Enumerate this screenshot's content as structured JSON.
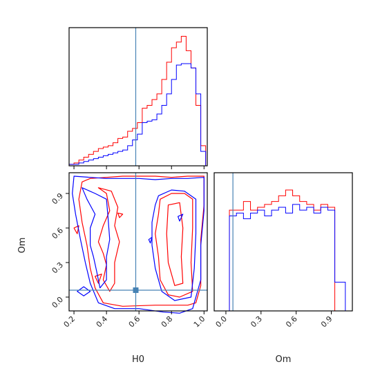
{
  "chart_data": {
    "type": "corner",
    "parameters": [
      "H0",
      "Om"
    ],
    "truth": {
      "H0": 0.58,
      "Om": 0.06
    },
    "truth_color": "#4682b4",
    "series": [
      {
        "color": "#ff0000"
      },
      {
        "color": "#0000ff"
      }
    ],
    "panels": {
      "h0_hist": {
        "xlim": [
          0.17,
          1.02
        ],
        "ylim": [
          0,
          48
        ],
        "bin_edges": [
          0.17,
          0.2,
          0.23,
          0.26,
          0.29,
          0.32,
          0.35,
          0.38,
          0.41,
          0.44,
          0.47,
          0.5,
          0.53,
          0.56,
          0.59,
          0.62,
          0.65,
          0.68,
          0.71,
          0.74,
          0.77,
          0.8,
          0.83,
          0.86,
          0.89,
          0.92,
          0.95,
          0.98,
          1.01
        ],
        "counts": [
          [
            0.5,
            1.0,
            2.0,
            3.0,
            4.0,
            5.0,
            6.0,
            6.5,
            7.0,
            8.0,
            9.5,
            10.0,
            12.0,
            13.0,
            15.0,
            20.0,
            21.0,
            23.0,
            25.0,
            30.0,
            36.0,
            41.0,
            43.0,
            45.0,
            40.0,
            34.0,
            21.0,
            7.0
          ],
          [
            0.5,
            0.5,
            1.0,
            1.5,
            2.0,
            2.5,
            3.0,
            3.5,
            4.0,
            4.5,
            5.0,
            5.5,
            7.0,
            9.0,
            11.0,
            15.0,
            15.5,
            16.0,
            18.0,
            21.0,
            25.0,
            30.0,
            35.0,
            35.5,
            35.5,
            34.0,
            25.0,
            5.0
          ]
        ],
        "xticks": [
          0.2,
          0.4,
          0.6,
          0.8,
          1.0
        ]
      },
      "om_hist": {
        "xlim": [
          -0.1,
          1.08
        ],
        "ylim": [
          0,
          48
        ],
        "bin_edges": [
          -0.03,
          0.0,
          0.03,
          0.06,
          0.09,
          0.12,
          0.15,
          0.18,
          0.21,
          0.24,
          0.27,
          0.3,
          0.33,
          0.36,
          0.39,
          0.42,
          0.45,
          0.48,
          0.51,
          0.54,
          0.57,
          0.6,
          0.63,
          0.66,
          0.69,
          0.72,
          0.75,
          0.78,
          0.81,
          0.84,
          0.87,
          0.9,
          0.93,
          0.96,
          0.99,
          1.02
        ],
        "counts": [
          [
            0.0,
            0.0,
            35.0,
            35.0,
            35.0,
            35.0,
            38.0,
            38.0,
            35.0,
            35.0,
            36.0,
            36.0,
            37.0,
            37.0,
            38.0,
            38.0,
            40.0,
            40.0,
            42.0,
            42.0,
            40.0,
            40.0,
            38.0,
            38.0,
            37.0,
            37.0,
            35.0,
            35.0,
            37.0,
            37.0,
            36.0,
            36.0,
            0.0,
            0.0,
            0.0
          ],
          [
            0.0,
            0.0,
            33.0,
            33.0,
            34.0,
            34.0,
            32.0,
            32.0,
            34.0,
            34.0,
            35.0,
            35.0,
            33.0,
            33.0,
            35.0,
            35.0,
            36.0,
            36.0,
            34.0,
            34.0,
            37.0,
            37.0,
            35.0,
            35.0,
            36.0,
            36.0,
            34.0,
            34.0,
            36.0,
            36.0,
            35.0,
            35.0,
            10.0,
            10.0,
            10.0
          ]
        ],
        "xticks": [
          0.0,
          0.3,
          0.6,
          0.9
        ],
        "xlabel": "Om"
      },
      "joint": {
        "xlim": [
          0.17,
          1.02
        ],
        "ylim": [
          -0.12,
          1.08
        ],
        "xticks": [
          0.2,
          0.4,
          0.6,
          0.8,
          1.0
        ],
        "yticks": [
          0.0,
          0.3,
          0.6,
          0.9
        ],
        "xlabel": "H0",
        "ylabel": "Om",
        "contours": [
          {
            "series": 0,
            "points": [
              [
                0.25,
                1.0
              ],
              [
                0.3,
                1.03
              ],
              [
                0.4,
                1.04
              ],
              [
                0.5,
                1.05
              ],
              [
                0.6,
                1.05
              ],
              [
                0.7,
                1.05
              ],
              [
                0.8,
                1.04
              ],
              [
                0.9,
                1.05
              ],
              [
                1.0,
                1.05
              ],
              [
                1.0,
                0.8
              ],
              [
                0.98,
                0.5
              ],
              [
                0.98,
                0.1
              ],
              [
                0.95,
                -0.05
              ],
              [
                0.9,
                -0.07
              ],
              [
                0.7,
                -0.07
              ],
              [
                0.5,
                -0.08
              ],
              [
                0.38,
                -0.05
              ],
              [
                0.33,
                0.08
              ],
              [
                0.3,
                0.25
              ],
              [
                0.28,
                0.45
              ],
              [
                0.25,
                0.65
              ],
              [
                0.23,
                0.85
              ]
            ]
          },
          {
            "series": 0,
            "points": [
              [
                0.35,
                0.95
              ],
              [
                0.4,
                0.9
              ],
              [
                0.42,
                0.75
              ],
              [
                0.38,
                0.62
              ],
              [
                0.35,
                0.48
              ],
              [
                0.38,
                0.38
              ],
              [
                0.4,
                0.28
              ],
              [
                0.38,
                0.15
              ],
              [
                0.42,
                0.05
              ],
              [
                0.45,
                0.12
              ],
              [
                0.45,
                0.3
              ],
              [
                0.48,
                0.48
              ],
              [
                0.45,
                0.62
              ],
              [
                0.47,
                0.78
              ],
              [
                0.43,
                0.92
              ]
            ]
          },
          {
            "series": 0,
            "points": [
              [
                0.73,
                0.85
              ],
              [
                0.8,
                0.9
              ],
              [
                0.88,
                0.9
              ],
              [
                0.93,
                0.85
              ],
              [
                0.93,
                0.6
              ],
              [
                0.92,
                0.3
              ],
              [
                0.93,
                0.05
              ],
              [
                0.85,
                0.0
              ],
              [
                0.78,
                0.02
              ],
              [
                0.73,
                0.15
              ],
              [
                0.72,
                0.35
              ],
              [
                0.7,
                0.55
              ],
              [
                0.72,
                0.72
              ]
            ]
          },
          {
            "series": 0,
            "points": [
              [
                0.78,
                0.8
              ],
              [
                0.85,
                0.82
              ],
              [
                0.87,
                0.6
              ],
              [
                0.86,
                0.35
              ],
              [
                0.87,
                0.12
              ],
              [
                0.82,
                0.1
              ],
              [
                0.78,
                0.3
              ],
              [
                0.77,
                0.55
              ]
            ]
          },
          {
            "series": 0,
            "points": [
              [
                0.2,
                0.6
              ],
              [
                0.23,
                0.62
              ],
              [
                0.22,
                0.55
              ]
            ]
          },
          {
            "series": 0,
            "points": [
              [
                0.47,
                0.73
              ],
              [
                0.5,
                0.72
              ],
              [
                0.48,
                0.69
              ]
            ]
          },
          {
            "series": 0,
            "points": [
              [
                0.33,
                0.18
              ],
              [
                0.37,
                0.2
              ],
              [
                0.35,
                0.12
              ]
            ]
          },
          {
            "series": 1,
            "points": [
              [
                0.2,
                1.05
              ],
              [
                0.3,
                1.04
              ],
              [
                0.4,
                1.03
              ],
              [
                0.5,
                1.03
              ],
              [
                0.6,
                1.03
              ],
              [
                0.7,
                1.02
              ],
              [
                0.8,
                1.03
              ],
              [
                0.9,
                1.03
              ],
              [
                1.0,
                1.04
              ],
              [
                1.0,
                0.75
              ],
              [
                0.98,
                0.45
              ],
              [
                0.98,
                0.15
              ],
              [
                0.93,
                -0.1
              ],
              [
                0.85,
                -0.14
              ],
              [
                0.75,
                -0.13
              ],
              [
                0.6,
                -0.1
              ],
              [
                0.45,
                -0.1
              ],
              [
                0.35,
                -0.05
              ],
              [
                0.3,
                0.12
              ],
              [
                0.27,
                0.3
              ],
              [
                0.24,
                0.5
              ],
              [
                0.21,
                0.72
              ],
              [
                0.19,
                0.9
              ]
            ]
          },
          {
            "series": 1,
            "points": [
              [
                0.25,
                0.95
              ],
              [
                0.28,
                0.85
              ],
              [
                0.33,
                0.72
              ],
              [
                0.3,
                0.6
              ],
              [
                0.3,
                0.45
              ],
              [
                0.32,
                0.35
              ],
              [
                0.34,
                0.22
              ],
              [
                0.36,
                0.08
              ],
              [
                0.4,
                0.15
              ],
              [
                0.4,
                0.35
              ],
              [
                0.42,
                0.5
              ],
              [
                0.41,
                0.68
              ],
              [
                0.4,
                0.85
              ],
              [
                0.33,
                0.9
              ]
            ]
          },
          {
            "series": 1,
            "points": [
              [
                0.72,
                0.88
              ],
              [
                0.8,
                0.93
              ],
              [
                0.88,
                0.92
              ],
              [
                0.95,
                0.85
              ],
              [
                0.95,
                0.55
              ],
              [
                0.94,
                0.25
              ],
              [
                0.92,
                0.0
              ],
              [
                0.82,
                -0.03
              ],
              [
                0.74,
                0.05
              ],
              [
                0.7,
                0.25
              ],
              [
                0.68,
                0.45
              ],
              [
                0.68,
                0.65
              ],
              [
                0.7,
                0.8
              ]
            ]
          },
          {
            "series": 1,
            "points": [
              [
                0.66,
                0.5
              ],
              [
                0.68,
                0.52
              ],
              [
                0.67,
                0.47
              ]
            ]
          },
          {
            "series": 1,
            "points": [
              [
                0.22,
                0.05
              ],
              [
                0.26,
                0.09
              ],
              [
                0.3,
                0.05
              ],
              [
                0.26,
                0.01
              ]
            ]
          },
          {
            "series": 1,
            "points": [
              [
                0.84,
                0.7
              ],
              [
                0.87,
                0.72
              ],
              [
                0.85,
                0.66
              ]
            ]
          }
        ]
      }
    }
  }
}
